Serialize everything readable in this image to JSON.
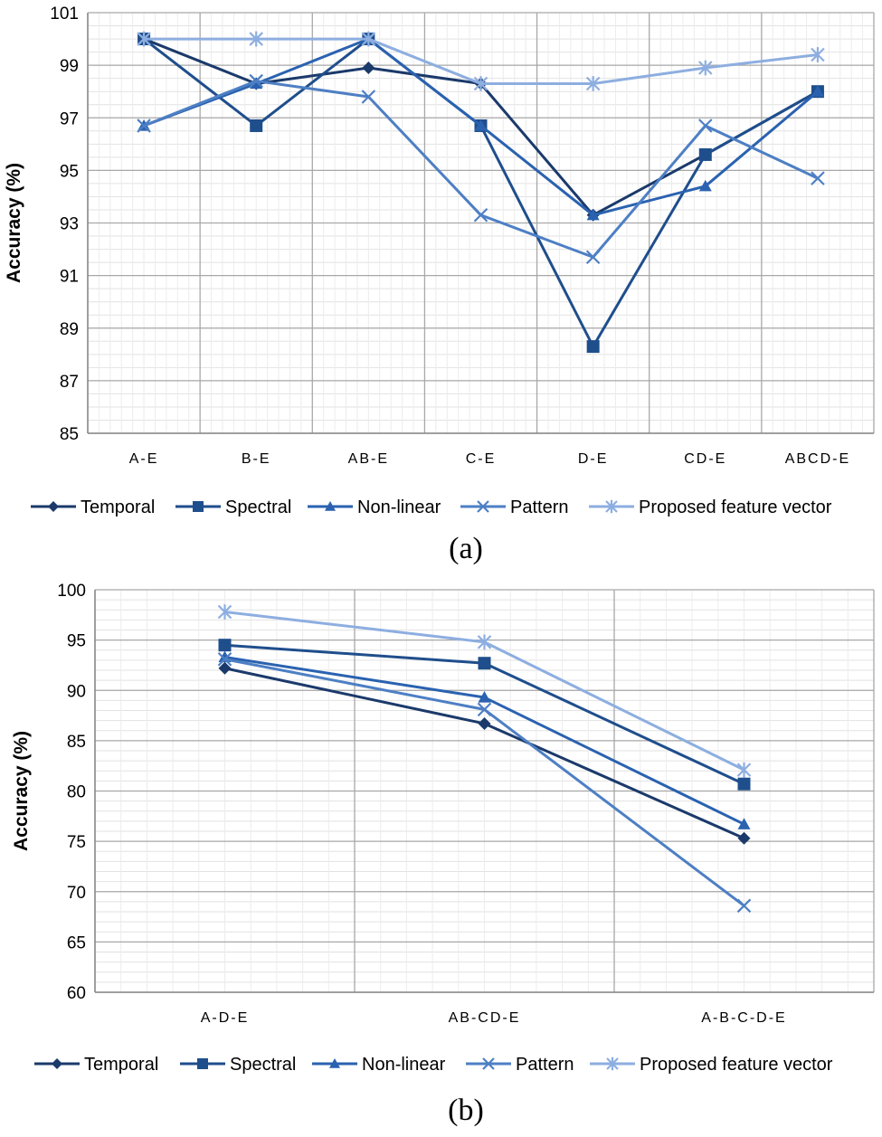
{
  "chart_data": [
    {
      "type": "line",
      "panel_label": "(a)",
      "ylabel": "Accuracy (%)",
      "xlabel": "",
      "ylim": [
        85,
        101
      ],
      "yticks": [
        85,
        87,
        89,
        91,
        93,
        95,
        97,
        99,
        101
      ],
      "categories": [
        "A-E",
        "B-E",
        "AB-E",
        "C-E",
        "D-E",
        "CD-E",
        "ABCD-E"
      ],
      "grid": true,
      "legend_position": "bottom",
      "series": [
        {
          "name": "Temporal",
          "marker": "diamond",
          "color": "#1b3a6b",
          "values": [
            100,
            98.3,
            98.9,
            98.3,
            93.3,
            95.6,
            98
          ]
        },
        {
          "name": "Spectral",
          "marker": "square",
          "color": "#1f4e8c",
          "values": [
            100,
            96.7,
            100,
            96.7,
            88.3,
            95.6,
            98
          ]
        },
        {
          "name": "Non-linear",
          "marker": "triangle",
          "color": "#2a62b0",
          "values": [
            96.7,
            98.3,
            100,
            96.7,
            93.3,
            94.4,
            98
          ]
        },
        {
          "name": "Pattern",
          "marker": "x",
          "color": "#4d7fc4",
          "values": [
            96.7,
            98.4,
            97.8,
            93.3,
            91.7,
            96.7,
            94.7
          ]
        },
        {
          "name": "Proposed feature vector",
          "marker": "star",
          "color": "#8daee0",
          "values": [
            100,
            100,
            100,
            98.3,
            98.3,
            98.9,
            99.4
          ]
        }
      ]
    },
    {
      "type": "line",
      "panel_label": "(b)",
      "ylabel": "Accuracy (%)",
      "xlabel": "",
      "ylim": [
        60,
        100
      ],
      "yticks": [
        60,
        65,
        70,
        75,
        80,
        85,
        90,
        95,
        100
      ],
      "categories": [
        "A-D-E",
        "AB-CD-E",
        "A-B-C-D-E"
      ],
      "grid": true,
      "legend_position": "bottom",
      "series": [
        {
          "name": "Temporal",
          "marker": "diamond",
          "color": "#1b3a6b",
          "values": [
            92.2,
            86.7,
            75.3
          ]
        },
        {
          "name": "Spectral",
          "marker": "square",
          "color": "#1f4e8c",
          "values": [
            94.5,
            92.7,
            80.7
          ]
        },
        {
          "name": "Non-linear",
          "marker": "triangle",
          "color": "#2a62b0",
          "values": [
            93.3,
            89.3,
            76.7
          ]
        },
        {
          "name": "Pattern",
          "marker": "x",
          "color": "#4d7fc4",
          "values": [
            93.1,
            88.1,
            68.6
          ]
        },
        {
          "name": "Proposed feature vector",
          "marker": "star",
          "color": "#8daee0",
          "values": [
            97.8,
            94.8,
            82.1
          ]
        }
      ]
    }
  ]
}
